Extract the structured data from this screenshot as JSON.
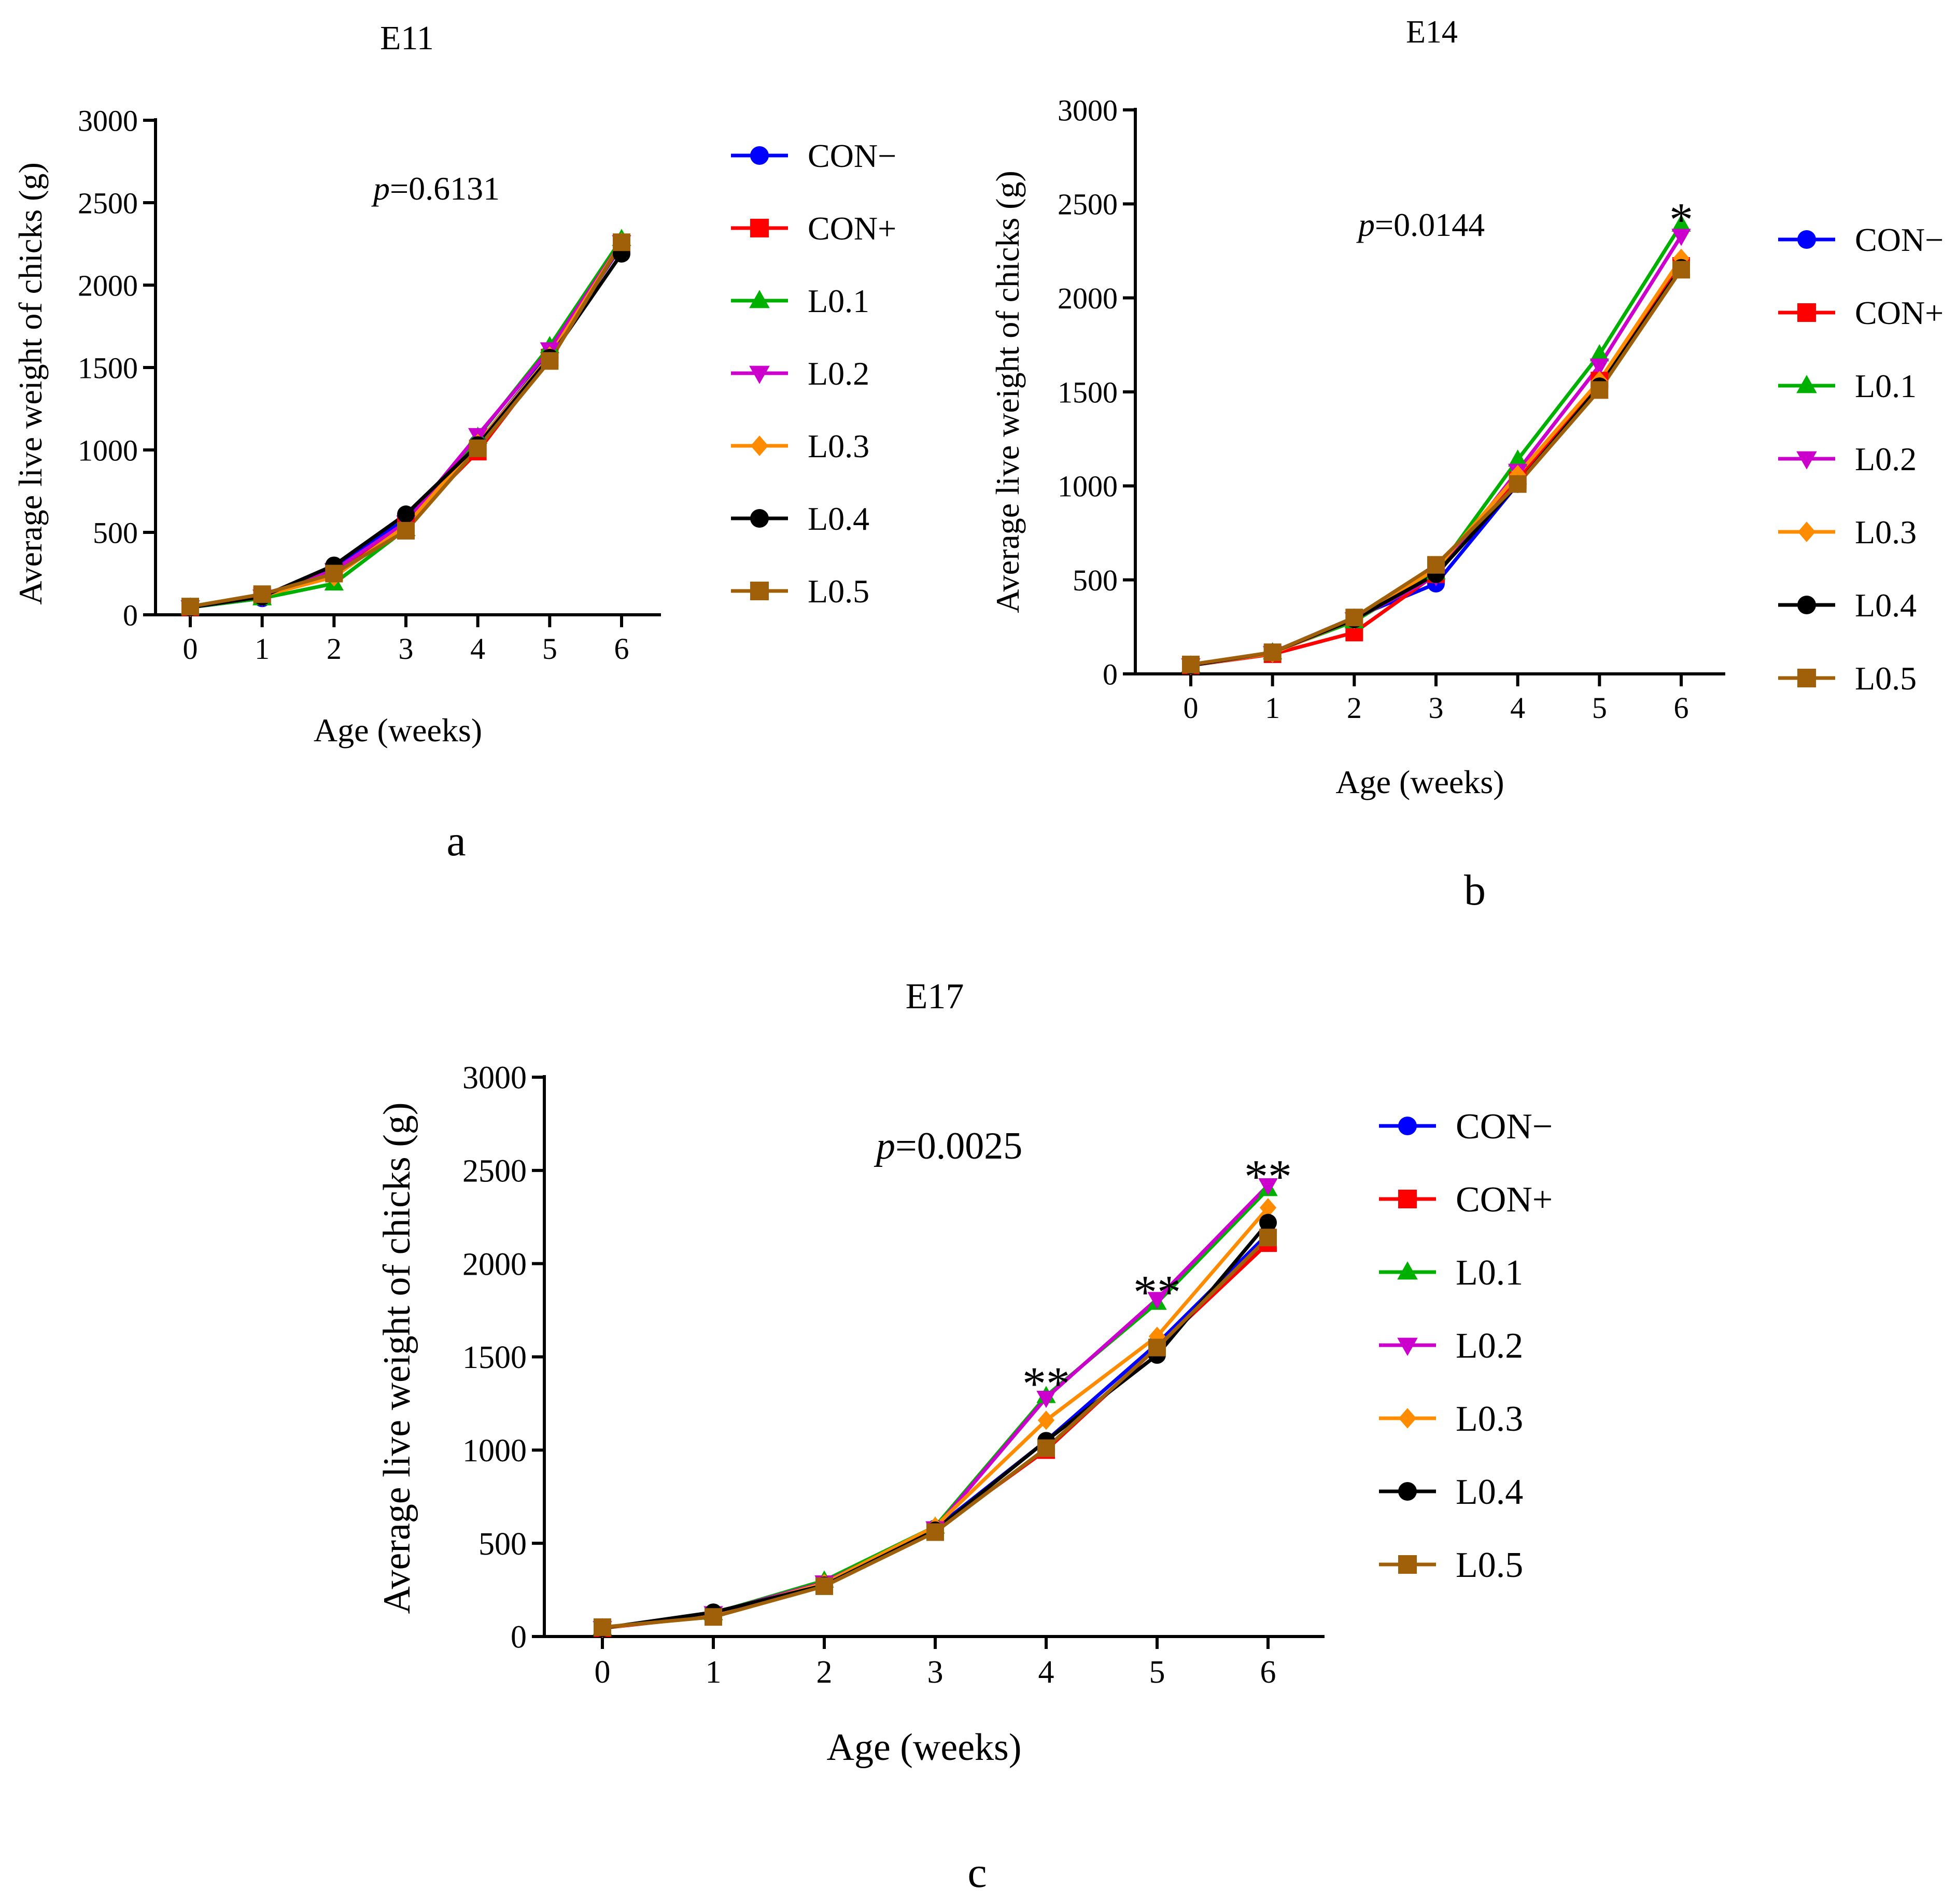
{
  "chart_data": [
    {
      "type": "line",
      "panel_label": "a",
      "title": "E11",
      "annotation": "=0.6131",
      "annotation_italic": "p",
      "significance": [],
      "xlabel": "Age (weeks)",
      "ylabel": "Average live weight of chicks (g)",
      "xlim": [
        0,
        6
      ],
      "ylim": [
        0,
        3000
      ],
      "xticks": [
        "0",
        "1",
        "2",
        "3",
        "4",
        "5",
        "6"
      ],
      "yticks": [
        "0",
        "500",
        "1000",
        "1500",
        "2000",
        "2500",
        "3000"
      ],
      "x": [
        0,
        1,
        2,
        3,
        4,
        5,
        6
      ],
      "series": [
        {
          "name": "CON−",
          "values": [
            45,
            100,
            290,
            580,
            1040,
            1580,
            2240
          ]
        },
        {
          "name": "CON+",
          "values": [
            45,
            115,
            260,
            550,
            990,
            1560,
            2250
          ]
        },
        {
          "name": "L0.1",
          "values": [
            45,
            100,
            190,
            520,
            1080,
            1630,
            2280
          ]
        },
        {
          "name": "L0.2",
          "values": [
            45,
            110,
            270,
            560,
            1090,
            1610,
            2260
          ]
        },
        {
          "name": "L0.3",
          "values": [
            45,
            115,
            230,
            540,
            1040,
            1570,
            2260
          ]
        },
        {
          "name": "L0.4",
          "values": [
            45,
            110,
            300,
            610,
            1030,
            1560,
            2190
          ]
        },
        {
          "name": "L0.5",
          "values": [
            50,
            125,
            250,
            510,
            1010,
            1540,
            2260
          ]
        }
      ]
    },
    {
      "type": "line",
      "panel_label": "b",
      "title": "E14",
      "annotation": "=0.0144",
      "annotation_italic": "p",
      "significance": [
        {
          "x": 6,
          "value": 2420,
          "text": "*"
        }
      ],
      "xlabel": "Age (weeks)",
      "ylabel": "Average live weight of chicks (g)",
      "xlim": [
        0,
        6
      ],
      "ylim": [
        0,
        3000
      ],
      "xticks": [
        "0",
        "1",
        "2",
        "3",
        "4",
        "5",
        "6"
      ],
      "yticks": [
        "0",
        "500",
        "1000",
        "1500",
        "2000",
        "2500",
        "3000"
      ],
      "x": [
        0,
        1,
        2,
        3,
        4,
        5,
        6
      ],
      "series": [
        {
          "name": "CON−",
          "values": [
            45,
            115,
            300,
            480,
            1010,
            1540,
            2160
          ]
        },
        {
          "name": "CON+",
          "values": [
            45,
            105,
            220,
            530,
            1030,
            1560,
            2170
          ]
        },
        {
          "name": "L0.1",
          "values": [
            45,
            115,
            280,
            540,
            1140,
            1700,
            2390
          ]
        },
        {
          "name": "L0.2",
          "values": [
            45,
            110,
            290,
            520,
            1080,
            1640,
            2330
          ]
        },
        {
          "name": "L0.3",
          "values": [
            45,
            110,
            290,
            560,
            1060,
            1560,
            2210
          ]
        },
        {
          "name": "L0.4",
          "values": [
            45,
            115,
            290,
            530,
            1010,
            1530,
            2160
          ]
        },
        {
          "name": "L0.5",
          "values": [
            50,
            115,
            300,
            580,
            1010,
            1510,
            2150
          ]
        }
      ]
    },
    {
      "type": "line",
      "panel_label": "c",
      "title": "E17",
      "annotation": "=0.0025",
      "annotation_italic": "p",
      "significance": [
        {
          "x": 4,
          "value": 1360,
          "text": "**"
        },
        {
          "x": 5,
          "value": 1850,
          "text": "**"
        },
        {
          "x": 6,
          "value": 2470,
          "text": "**"
        }
      ],
      "xlabel": "Age (weeks)",
      "ylabel": "Average live weight of chicks (g)",
      "xlim": [
        0,
        6
      ],
      "ylim": [
        0,
        3000
      ],
      "xticks": [
        "0",
        "1",
        "2",
        "3",
        "4",
        "5",
        "6"
      ],
      "yticks": [
        "0",
        "500",
        "1000",
        "1500",
        "2000",
        "2500",
        "3000"
      ],
      "x": [
        0,
        1,
        2,
        3,
        4,
        5,
        6
      ],
      "series": [
        {
          "name": "CON−",
          "values": [
            45,
            125,
            280,
            580,
            1050,
            1570,
            2160
          ]
        },
        {
          "name": "CON+",
          "values": [
            45,
            110,
            275,
            570,
            1000,
            1550,
            2110
          ]
        },
        {
          "name": "L0.1",
          "values": [
            45,
            125,
            300,
            590,
            1290,
            1790,
            2400
          ]
        },
        {
          "name": "L0.2",
          "values": [
            45,
            125,
            290,
            580,
            1280,
            1810,
            2420
          ]
        },
        {
          "name": "L0.3",
          "values": [
            45,
            120,
            285,
            590,
            1160,
            1610,
            2300
          ]
        },
        {
          "name": "L0.4",
          "values": [
            45,
            130,
            275,
            570,
            1050,
            1510,
            2220
          ]
        },
        {
          "name": "L0.5",
          "values": [
            50,
            105,
            270,
            560,
            1010,
            1550,
            2140
          ]
        }
      ]
    }
  ],
  "series_styles": [
    {
      "color": "#0000FF",
      "marker": "circle"
    },
    {
      "color": "#FF0000",
      "marker": "square"
    },
    {
      "color": "#00B000",
      "marker": "triangle-up"
    },
    {
      "color": "#CC00CC",
      "marker": "triangle-down"
    },
    {
      "color": "#FF8C00",
      "marker": "diamond"
    },
    {
      "color": "#000000",
      "marker": "circle"
    },
    {
      "color": "#A0600A",
      "marker": "square"
    }
  ]
}
